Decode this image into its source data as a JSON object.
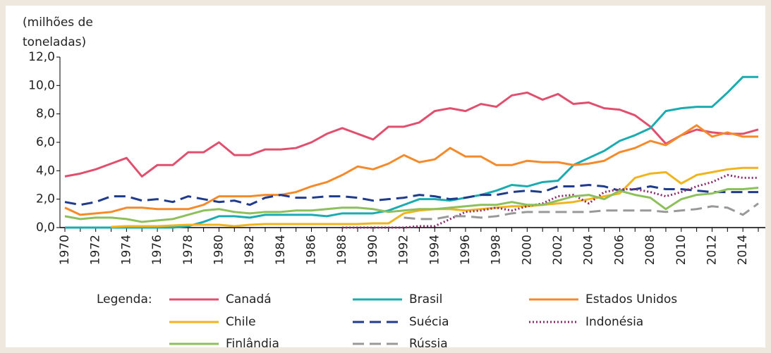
{
  "chart_data": {
    "type": "line",
    "y_label": [
      "(milhões de",
      "toneladas)"
    ],
    "legend_title": "Legenda:",
    "categories": [
      "1970",
      null,
      "1972",
      null,
      "1974",
      null,
      "1976",
      null,
      "1978",
      null,
      "1980",
      null,
      "1982",
      null,
      "1984",
      null,
      "1986",
      null,
      "1988",
      null,
      "1990",
      null,
      "1992",
      null,
      "1994",
      null,
      "1996",
      null,
      "1998",
      null,
      "2000",
      null,
      "2002",
      null,
      "2004",
      null,
      "2006",
      null,
      "2008",
      null,
      "2010",
      null,
      "2012",
      null,
      "2014",
      null
    ],
    "ylim": [
      0,
      12
    ],
    "yticks": [
      {
        "value": 0,
        "label": "0,0"
      },
      {
        "value": 2,
        "label": "2,0"
      },
      {
        "value": 4,
        "label": "4,0"
      },
      {
        "value": 6,
        "label": "6,0"
      },
      {
        "value": 8,
        "label": "8,0"
      },
      {
        "value": 10,
        "label": "10,0"
      },
      {
        "value": 12,
        "label": "12,0"
      }
    ],
    "series": [
      {
        "name": "Canadá",
        "color": "#e0506e",
        "dash": "solid",
        "values": [
          3.6,
          3.8,
          4.1,
          4.5,
          4.9,
          3.6,
          4.4,
          4.4,
          5.3,
          5.3,
          6.0,
          5.1,
          5.1,
          5.5,
          5.5,
          5.6,
          6.0,
          6.6,
          7.0,
          6.6,
          6.2,
          7.1,
          7.1,
          7.4,
          8.2,
          8.4,
          8.2,
          8.7,
          8.5,
          9.3,
          9.5,
          9.0,
          9.4,
          8.7,
          8.8,
          8.4,
          8.3,
          7.9,
          7.1,
          5.9,
          6.5,
          6.9,
          6.7,
          6.6,
          6.6,
          6.9
        ]
      },
      {
        "name": "Brasil",
        "color": "#1aacb0",
        "dash": "solid",
        "values": [
          0,
          0,
          0,
          0,
          0,
          0,
          0,
          0,
          0.1,
          0.4,
          0.8,
          0.8,
          0.7,
          0.9,
          0.9,
          0.9,
          0.9,
          0.8,
          1.0,
          1.0,
          1.0,
          1.2,
          1.6,
          2.0,
          2.0,
          1.9,
          2.1,
          2.3,
          2.6,
          3.0,
          2.9,
          3.2,
          3.3,
          4.4,
          4.9,
          5.4,
          6.1,
          6.5,
          7.0,
          8.2,
          8.4,
          8.5,
          8.5,
          9.5,
          10.6,
          10.6
        ]
      },
      {
        "name": "Estados Unidos",
        "color": "#f58a2a",
        "dash": "solid",
        "values": [
          1.4,
          0.9,
          1.0,
          1.1,
          1.4,
          1.4,
          1.3,
          1.3,
          1.3,
          1.6,
          2.2,
          2.2,
          2.2,
          2.3,
          2.3,
          2.5,
          2.9,
          3.2,
          3.7,
          4.3,
          4.1,
          4.5,
          5.1,
          4.6,
          4.8,
          5.6,
          5.0,
          5.0,
          4.4,
          4.4,
          4.7,
          4.6,
          4.6,
          4.4,
          4.5,
          4.7,
          5.3,
          5.6,
          6.1,
          5.8,
          6.5,
          7.2,
          6.4,
          6.7,
          6.4,
          6.4
        ]
      },
      {
        "name": "Chile",
        "color": "#f0b41e",
        "dash": "solid",
        "values": [
          null,
          null,
          null,
          0.05,
          0.1,
          0.1,
          0.1,
          0.15,
          0.2,
          0.2,
          0.2,
          0.1,
          0.2,
          0.25,
          0.25,
          0.25,
          0.25,
          0.25,
          0.25,
          0.25,
          0.3,
          0.3,
          1.0,
          1.2,
          1.3,
          1.3,
          1.2,
          1.3,
          1.4,
          1.5,
          1.5,
          1.6,
          1.7,
          1.8,
          2.0,
          2.2,
          2.4,
          3.5,
          3.8,
          3.9,
          3.1,
          3.7,
          3.9,
          4.1,
          4.2,
          4.2
        ]
      },
      {
        "name": "Suécia",
        "color": "#1f3b8c",
        "dash": "dash",
        "values": [
          1.8,
          1.6,
          1.8,
          2.2,
          2.2,
          1.9,
          2.0,
          1.8,
          2.2,
          2.0,
          1.8,
          1.9,
          1.6,
          2.1,
          2.3,
          2.1,
          2.1,
          2.2,
          2.2,
          2.1,
          1.9,
          2.0,
          2.1,
          2.3,
          2.2,
          2.0,
          2.1,
          2.3,
          2.3,
          2.5,
          2.6,
          2.5,
          2.9,
          2.9,
          3.0,
          2.9,
          2.6,
          2.7,
          2.9,
          2.7,
          2.7,
          2.6,
          2.5,
          2.5,
          2.5,
          2.5
        ]
      },
      {
        "name": "Indonésia",
        "color": "#8a2a6a",
        "dash": "dot",
        "values": [
          null,
          null,
          null,
          null,
          null,
          null,
          null,
          null,
          null,
          null,
          null,
          null,
          null,
          null,
          null,
          null,
          null,
          null,
          0.0,
          0.0,
          0.0,
          0.0,
          0.0,
          0.1,
          0.1,
          0.6,
          1.1,
          1.2,
          1.4,
          1.2,
          1.5,
          1.7,
          2.2,
          2.3,
          1.7,
          2.5,
          2.7,
          2.7,
          2.5,
          2.2,
          2.5,
          2.9,
          3.2,
          3.7,
          3.5,
          3.5
        ]
      },
      {
        "name": "Finlândia",
        "color": "#8dc05a",
        "dash": "solid",
        "values": [
          0.8,
          0.6,
          0.7,
          0.7,
          0.6,
          0.4,
          0.5,
          0.6,
          0.9,
          1.2,
          1.3,
          1.1,
          1.0,
          1.1,
          1.1,
          1.2,
          1.2,
          1.3,
          1.4,
          1.4,
          1.3,
          1.1,
          1.2,
          1.3,
          1.3,
          1.4,
          1.5,
          1.6,
          1.6,
          1.8,
          1.6,
          1.6,
          1.9,
          2.2,
          2.3,
          2.0,
          2.6,
          2.3,
          2.1,
          1.3,
          2.0,
          2.3,
          2.4,
          2.7,
          2.7,
          2.8
        ]
      },
      {
        "name": "Rússia",
        "color": "#999999",
        "dash": "dash",
        "values": [
          null,
          null,
          null,
          null,
          null,
          null,
          null,
          null,
          null,
          null,
          null,
          null,
          null,
          null,
          null,
          null,
          null,
          null,
          null,
          null,
          null,
          null,
          0.7,
          0.6,
          0.6,
          0.8,
          0.8,
          0.7,
          0.8,
          1.0,
          1.1,
          1.1,
          1.1,
          1.1,
          1.1,
          1.2,
          1.2,
          1.2,
          1.2,
          1.1,
          1.2,
          1.3,
          1.5,
          1.4,
          0.9,
          1.7
        ]
      }
    ]
  }
}
